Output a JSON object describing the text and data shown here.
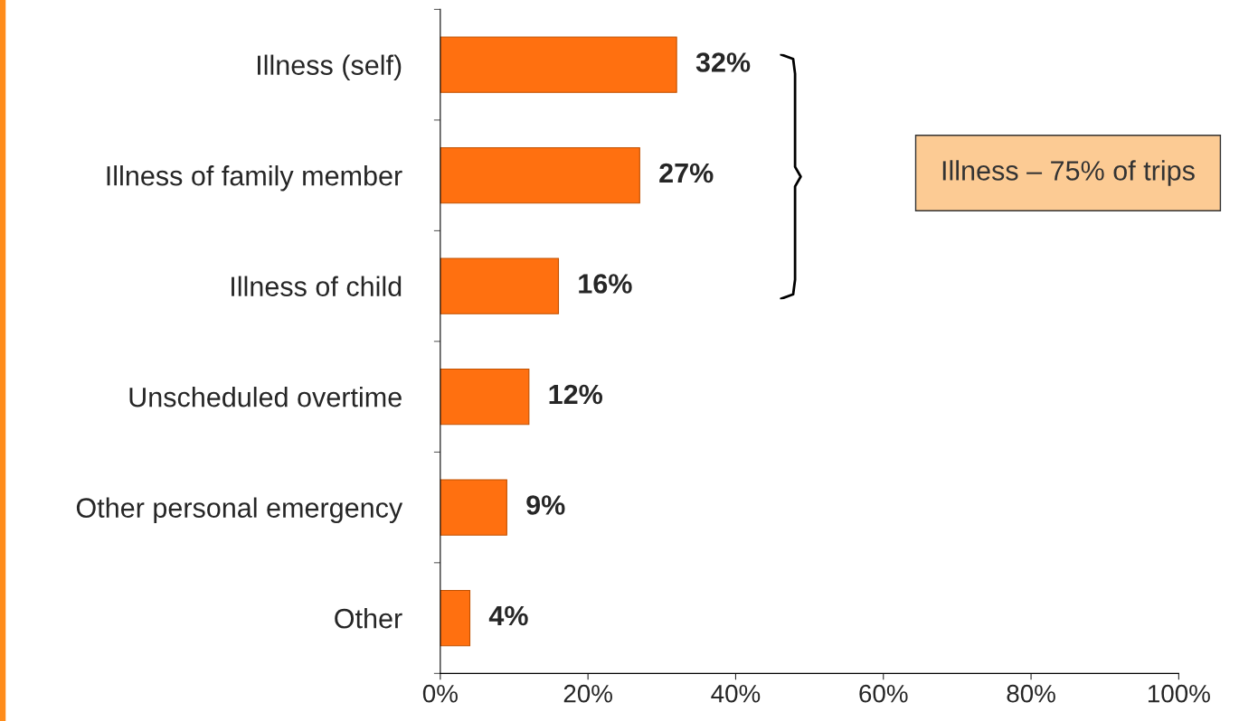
{
  "chart_data": {
    "type": "bar",
    "orientation": "horizontal",
    "categories": [
      "Illness (self)",
      "Illness of family member",
      "Illness of child",
      "Unscheduled overtime",
      "Other personal emergency",
      "Other"
    ],
    "values": [
      32,
      27,
      16,
      12,
      9,
      4
    ],
    "value_labels": [
      "32%",
      "27%",
      "16%",
      "12%",
      "9%",
      "4%"
    ],
    "color": "#ff7010",
    "xlim": [
      0,
      100
    ],
    "xticks": [
      {
        "value": 0,
        "label": "0%"
      },
      {
        "value": 20,
        "label": "20%"
      },
      {
        "value": 40,
        "label": "40%"
      },
      {
        "value": 60,
        "label": "60%"
      },
      {
        "value": 80,
        "label": "80%"
      },
      {
        "value": 100,
        "label": "100%"
      }
    ],
    "annotations": [
      "Illness – 75% of trips"
    ],
    "grid": false,
    "legend": false
  }
}
